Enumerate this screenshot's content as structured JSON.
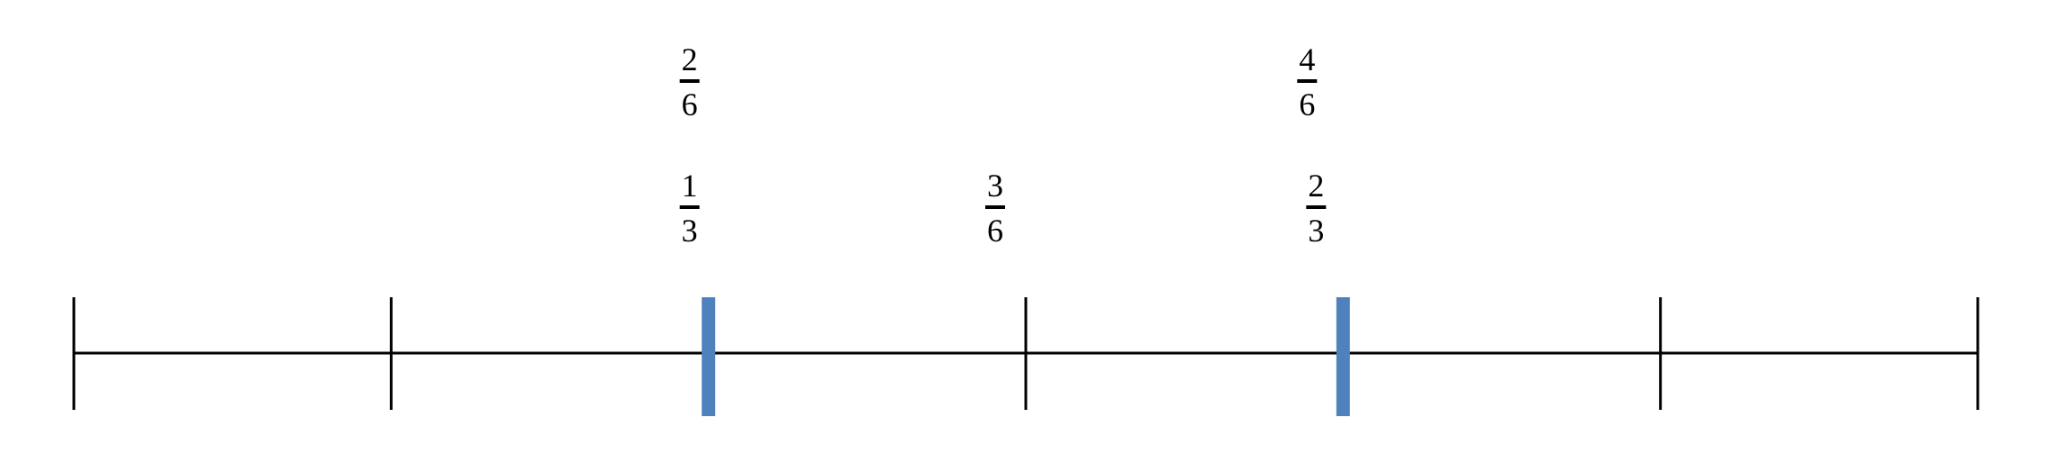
{
  "number_line": {
    "tick_count": 7,
    "highlighted_ticks": [
      2,
      4
    ],
    "line_color": "#000000",
    "highlight_color": "#4f81bd"
  },
  "fraction_labels": [
    {
      "row": "top",
      "tick": 2,
      "numerator": "2",
      "denominator": "6"
    },
    {
      "row": "top",
      "tick": 4,
      "numerator": "4",
      "denominator": "6"
    },
    {
      "row": "bottom",
      "tick": 2,
      "numerator": "1",
      "denominator": "3"
    },
    {
      "row": "bottom",
      "tick": 3,
      "numerator": "3",
      "denominator": "6"
    },
    {
      "row": "bottom",
      "tick": 4,
      "numerator": "2",
      "denominator": "3"
    }
  ]
}
